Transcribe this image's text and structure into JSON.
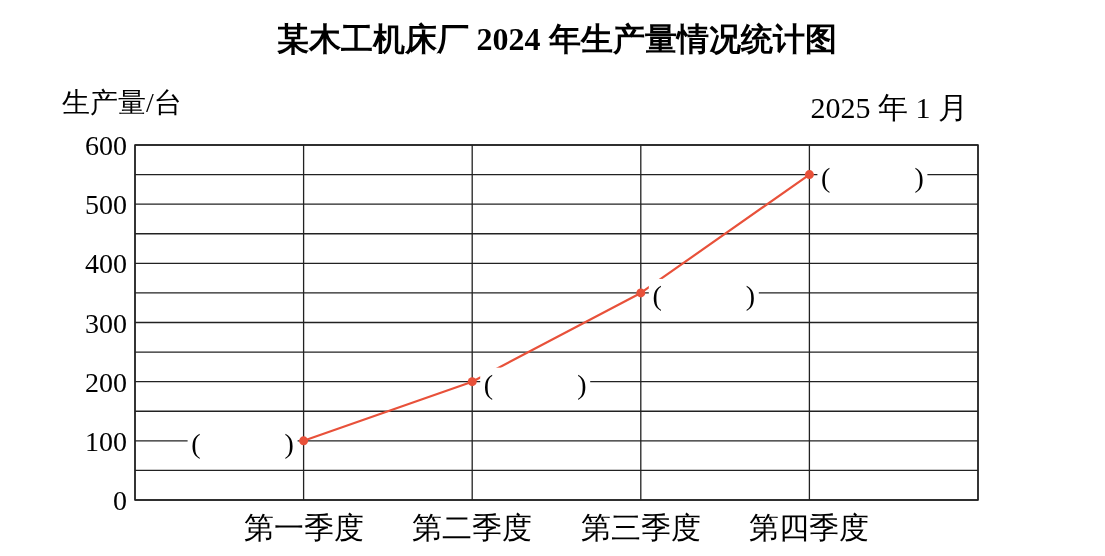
{
  "chart_data": {
    "type": "line",
    "title": "某木工机床厂 2024 年生产量情况统计图",
    "ylabel": "生产量/台",
    "categories": [
      "第一季度",
      "第二季度",
      "第三季度",
      "第四季度"
    ],
    "series": [
      {
        "color": "#e8513a",
        "values": [
          100,
          200,
          350,
          550
        ]
      }
    ],
    "ylim": [
      0,
      600
    ],
    "yticks": [
      0,
      {
        "value": 50,
        "label": null
      },
      100,
      {
        "value": 150,
        "label": null
      },
      200,
      {
        "value": 250,
        "label": null
      },
      300,
      {
        "value": 350,
        "label": null
      },
      400,
      {
        "value": 450,
        "label": null
      },
      500,
      {
        "value": 550,
        "label": null
      },
      600
    ],
    "grid": true,
    "marker": "circle",
    "line_style": "solid",
    "annotations": [
      "2025 年 1 月",
      {
        "text": "(　　　)",
        "x": "第一季度",
        "y": 100
      },
      {
        "text": "(　　　)",
        "x": "第二季度",
        "y": 200
      },
      {
        "text": "(　　　)",
        "x": "第三季度",
        "y": 350
      },
      {
        "text": "(　　　)",
        "x": "第四季度",
        "y": 550
      }
    ]
  }
}
